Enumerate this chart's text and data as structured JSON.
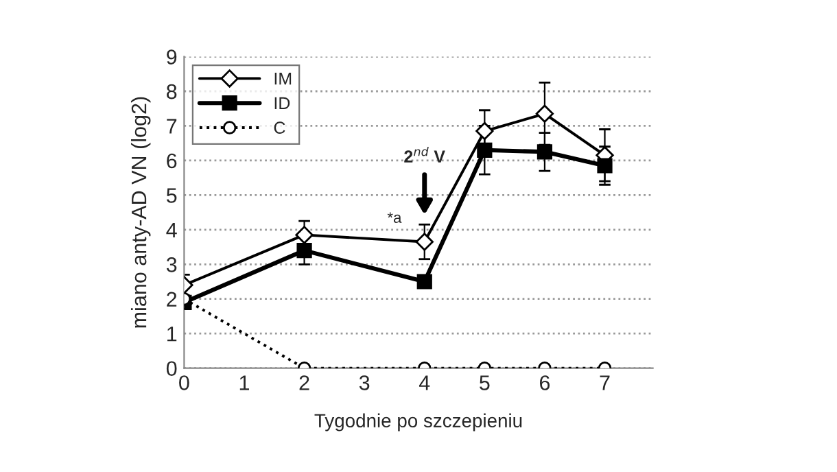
{
  "chart_data": {
    "type": "line",
    "xlabel": "Tygodnie po szczepieniu",
    "ylabel": "miano anty-AD VN (log2)",
    "x": [
      0,
      2,
      4,
      5,
      6,
      7
    ],
    "series": [
      {
        "name": "IM",
        "color": "#000000",
        "values": [
          2.4,
          3.85,
          3.65,
          6.85,
          7.35,
          6.15
        ],
        "errors": [
          0.3,
          0.4,
          0.5,
          0.6,
          0.9,
          0.75
        ],
        "marker": "diamond",
        "line_style": "solid"
      },
      {
        "name": "ID",
        "color": "#000000",
        "values": [
          1.9,
          3.4,
          2.5,
          6.3,
          6.25,
          5.85
        ],
        "errors": [
          null,
          0.4,
          null,
          0.7,
          0.55,
          0.55
        ],
        "marker": "square",
        "line_style": "solid"
      },
      {
        "name": "C",
        "color": "#000000",
        "values": [
          2,
          0,
          0,
          0,
          0,
          0
        ],
        "marker": "circle",
        "line_style": "dotted"
      }
    ],
    "xlim": [
      0,
      7.8
    ],
    "xticks": [
      0,
      1,
      2,
      3,
      4,
      5,
      6,
      7
    ],
    "ylim": [
      0,
      9
    ],
    "yticks": [
      0,
      1,
      2,
      3,
      4,
      5,
      6,
      7,
      8,
      9
    ],
    "grid": "y",
    "legend": "top left",
    "annotations": [
      "2$^{nd}$ V",
      {
        "text": "*a",
        "x": 4,
        "y": 3.65
      }
    ]
  }
}
